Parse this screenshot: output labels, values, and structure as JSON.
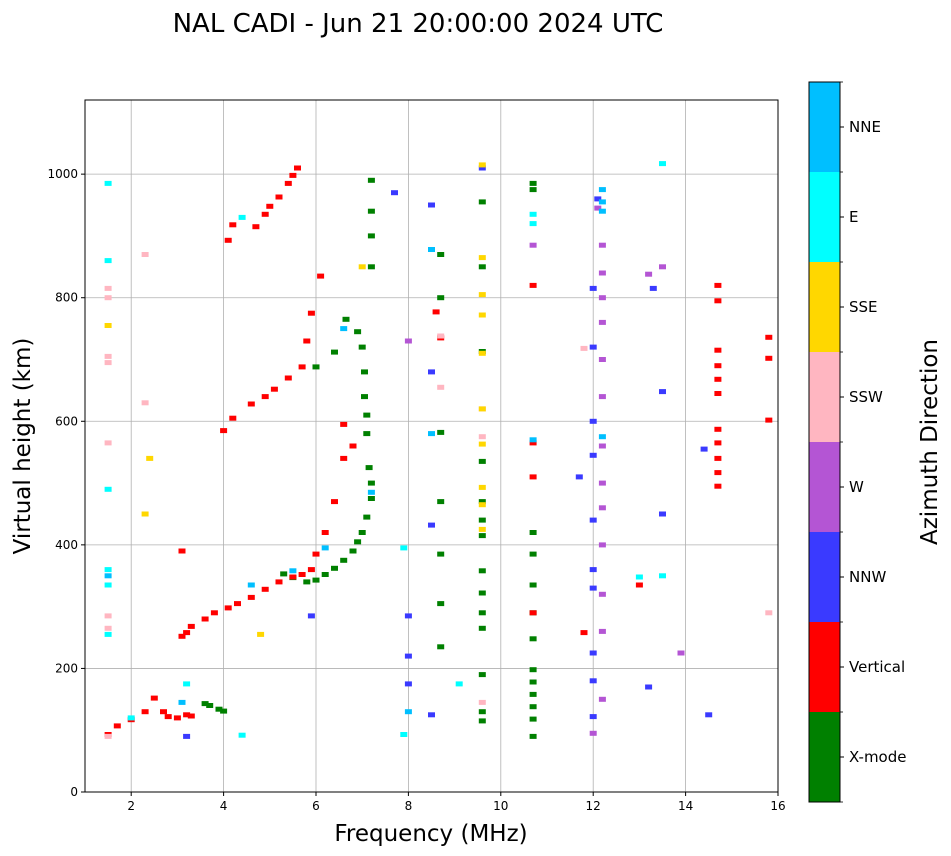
{
  "chart_data": {
    "type": "scatter",
    "title": "NAL CADI - Jun 21 20:00:00 2024 UTC",
    "xlabel": "Frequency (MHz)",
    "ylabel": "Virtual height (km)",
    "xlim": [
      1,
      16
    ],
    "ylim": [
      0,
      1120
    ],
    "xticks": [
      2,
      4,
      6,
      8,
      10,
      12,
      14,
      16
    ],
    "yticks": [
      0,
      200,
      400,
      600,
      800,
      1000
    ],
    "grid": true,
    "colorbar": {
      "label": "Azimuth Direction",
      "categories": [
        {
          "name": "X-mode",
          "color": "#008000"
        },
        {
          "name": "Vertical",
          "color": "#ff0000"
        },
        {
          "name": "NNW",
          "color": "#3a3aff"
        },
        {
          "name": "W",
          "color": "#b455d4"
        },
        {
          "name": "SSW",
          "color": "#ffb6c1"
        },
        {
          "name": "SSE",
          "color": "#ffd700"
        },
        {
          "name": "E",
          "color": "#00ffff"
        },
        {
          "name": "NNE",
          "color": "#00bfff"
        }
      ]
    },
    "series": [
      {
        "name": "X-mode",
        "points": [
          [
            3.6,
            143
          ],
          [
            3.7,
            140
          ],
          [
            3.9,
            134
          ],
          [
            4.0,
            131
          ],
          [
            5.3,
            353
          ],
          [
            5.5,
            347
          ],
          [
            5.8,
            340
          ],
          [
            6.0,
            343
          ],
          [
            6.2,
            352
          ],
          [
            6.4,
            362
          ],
          [
            6.6,
            375
          ],
          [
            6.8,
            390
          ],
          [
            6.9,
            405
          ],
          [
            7.0,
            420
          ],
          [
            7.1,
            445
          ],
          [
            7.2,
            475
          ],
          [
            7.2,
            500
          ],
          [
            7.15,
            525
          ],
          [
            7.1,
            580
          ],
          [
            7.1,
            610
          ],
          [
            7.05,
            640
          ],
          [
            7.05,
            680
          ],
          [
            7.0,
            720
          ],
          [
            6.9,
            745
          ],
          [
            6.65,
            765
          ],
          [
            6.4,
            712
          ],
          [
            6.0,
            688
          ],
          [
            7.2,
            850
          ],
          [
            7.2,
            900
          ],
          [
            7.2,
            940
          ],
          [
            7.2,
            990
          ],
          [
            8.7,
            235
          ],
          [
            8.7,
            305
          ],
          [
            8.7,
            385
          ],
          [
            8.7,
            470
          ],
          [
            8.7,
            582
          ],
          [
            8.7,
            800
          ],
          [
            8.7,
            870
          ],
          [
            9.6,
            115
          ],
          [
            9.6,
            130
          ],
          [
            9.6,
            190
          ],
          [
            9.6,
            265
          ],
          [
            9.6,
            290
          ],
          [
            9.6,
            322
          ],
          [
            9.6,
            358
          ],
          [
            9.6,
            415
          ],
          [
            9.6,
            440
          ],
          [
            9.6,
            470
          ],
          [
            9.6,
            535
          ],
          [
            9.6,
            713
          ],
          [
            9.6,
            850
          ],
          [
            9.6,
            955
          ],
          [
            10.7,
            90
          ],
          [
            10.7,
            118
          ],
          [
            10.7,
            138
          ],
          [
            10.7,
            158
          ],
          [
            10.7,
            178
          ],
          [
            10.7,
            198
          ],
          [
            10.7,
            248
          ],
          [
            10.7,
            290
          ],
          [
            10.7,
            335
          ],
          [
            10.7,
            385
          ],
          [
            10.7,
            420
          ],
          [
            10.7,
            975
          ],
          [
            10.7,
            985
          ]
        ]
      },
      {
        "name": "Vertical",
        "points": [
          [
            1.5,
            93
          ],
          [
            1.7,
            107
          ],
          [
            2.0,
            117
          ],
          [
            2.3,
            130
          ],
          [
            2.5,
            152
          ],
          [
            2.7,
            130
          ],
          [
            2.8,
            122
          ],
          [
            3.0,
            120
          ],
          [
            3.2,
            125
          ],
          [
            3.3,
            123
          ],
          [
            3.1,
            252
          ],
          [
            3.2,
            258
          ],
          [
            3.3,
            268
          ],
          [
            3.6,
            280
          ],
          [
            3.8,
            290
          ],
          [
            4.1,
            298
          ],
          [
            4.3,
            305
          ],
          [
            4.6,
            315
          ],
          [
            4.9,
            328
          ],
          [
            5.2,
            340
          ],
          [
            5.5,
            348
          ],
          [
            5.7,
            352
          ],
          [
            5.9,
            360
          ],
          [
            6.0,
            385
          ],
          [
            6.2,
            420
          ],
          [
            6.4,
            470
          ],
          [
            6.6,
            540
          ],
          [
            6.6,
            595
          ],
          [
            6.8,
            560
          ],
          [
            3.1,
            390
          ],
          [
            4.0,
            585
          ],
          [
            4.2,
            605
          ],
          [
            4.6,
            628
          ],
          [
            4.9,
            640
          ],
          [
            5.1,
            652
          ],
          [
            5.4,
            670
          ],
          [
            5.7,
            688
          ],
          [
            5.8,
            730
          ],
          [
            5.9,
            775
          ],
          [
            6.1,
            835
          ],
          [
            4.1,
            893
          ],
          [
            4.2,
            918
          ],
          [
            4.7,
            915
          ],
          [
            4.9,
            935
          ],
          [
            5.0,
            948
          ],
          [
            5.2,
            963
          ],
          [
            5.4,
            985
          ],
          [
            5.5,
            998
          ],
          [
            5.6,
            1010
          ],
          [
            8.6,
            777
          ],
          [
            8.7,
            735
          ],
          [
            10.7,
            290
          ],
          [
            10.7,
            510
          ],
          [
            10.7,
            565
          ],
          [
            10.7,
            820
          ],
          [
            11.8,
            258
          ],
          [
            13.0,
            335
          ],
          [
            14.7,
            495
          ],
          [
            14.7,
            517
          ],
          [
            14.7,
            540
          ],
          [
            14.7,
            565
          ],
          [
            14.7,
            587
          ],
          [
            14.7,
            645
          ],
          [
            14.7,
            668
          ],
          [
            14.7,
            690
          ],
          [
            14.7,
            715
          ],
          [
            14.7,
            795
          ],
          [
            14.7,
            820
          ],
          [
            15.8,
            602
          ],
          [
            15.8,
            702
          ],
          [
            15.8,
            736
          ]
        ]
      },
      {
        "name": "NNW",
        "points": [
          [
            8.0,
            285
          ],
          [
            8.0,
            220
          ],
          [
            8.0,
            175
          ],
          [
            8.5,
            125
          ],
          [
            8.5,
            432
          ],
          [
            8.5,
            680
          ],
          [
            8.5,
            950
          ],
          [
            9.6,
            1010
          ],
          [
            12.0,
            122
          ],
          [
            12.0,
            180
          ],
          [
            12.0,
            225
          ],
          [
            12.0,
            330
          ],
          [
            12.0,
            360
          ],
          [
            12.0,
            440
          ],
          [
            12.0,
            545
          ],
          [
            12.0,
            600
          ],
          [
            12.0,
            720
          ],
          [
            12.0,
            815
          ],
          [
            12.1,
            960
          ],
          [
            11.7,
            510
          ],
          [
            13.2,
            170
          ],
          [
            13.5,
            450
          ],
          [
            13.5,
            648
          ],
          [
            13.3,
            815
          ],
          [
            14.5,
            125
          ],
          [
            14.4,
            555
          ],
          [
            3.2,
            90
          ],
          [
            7.7,
            970
          ],
          [
            5.9,
            285
          ]
        ]
      },
      {
        "name": "W",
        "points": [
          [
            12.0,
            95
          ],
          [
            12.2,
            150
          ],
          [
            12.2,
            260
          ],
          [
            12.2,
            320
          ],
          [
            12.2,
            400
          ],
          [
            12.2,
            460
          ],
          [
            12.2,
            500
          ],
          [
            12.2,
            560
          ],
          [
            12.2,
            640
          ],
          [
            12.2,
            700
          ],
          [
            12.2,
            760
          ],
          [
            12.2,
            800
          ],
          [
            12.2,
            840
          ],
          [
            12.2,
            885
          ],
          [
            12.1,
            945
          ],
          [
            13.2,
            838
          ],
          [
            13.5,
            850
          ],
          [
            13.9,
            225
          ],
          [
            10.7,
            885
          ],
          [
            8.0,
            730
          ]
        ]
      },
      {
        "name": "SSW",
        "points": [
          [
            1.5,
            90
          ],
          [
            1.5,
            265
          ],
          [
            1.5,
            285
          ],
          [
            1.5,
            565
          ],
          [
            1.5,
            695
          ],
          [
            1.5,
            705
          ],
          [
            1.5,
            800
          ],
          [
            1.5,
            815
          ],
          [
            2.3,
            630
          ],
          [
            2.3,
            870
          ],
          [
            8.7,
            655
          ],
          [
            8.7,
            738
          ],
          [
            9.6,
            145
          ],
          [
            9.6,
            575
          ],
          [
            9.6,
            620
          ],
          [
            11.8,
            718
          ],
          [
            15.8,
            290
          ]
        ]
      },
      {
        "name": "SSE",
        "points": [
          [
            1.5,
            755
          ],
          [
            2.3,
            450
          ],
          [
            2.4,
            540
          ],
          [
            4.8,
            255
          ],
          [
            7.0,
            850
          ],
          [
            9.6,
            425
          ],
          [
            9.6,
            465
          ],
          [
            9.6,
            493
          ],
          [
            9.6,
            563
          ],
          [
            9.6,
            620
          ],
          [
            9.6,
            710
          ],
          [
            9.6,
            772
          ],
          [
            9.6,
            805
          ],
          [
            9.6,
            865
          ],
          [
            9.6,
            1015
          ]
        ]
      },
      {
        "name": "E",
        "points": [
          [
            1.5,
            255
          ],
          [
            1.5,
            335
          ],
          [
            1.5,
            360
          ],
          [
            1.5,
            490
          ],
          [
            1.5,
            860
          ],
          [
            1.5,
            985
          ],
          [
            2.0,
            120
          ],
          [
            3.2,
            175
          ],
          [
            4.4,
            92
          ],
          [
            7.9,
            93
          ],
          [
            7.9,
            395
          ],
          [
            9.1,
            175
          ],
          [
            10.7,
            920
          ],
          [
            10.7,
            935
          ],
          [
            13.0,
            348
          ],
          [
            13.5,
            350
          ],
          [
            13.5,
            1017
          ],
          [
            4.4,
            930
          ]
        ]
      },
      {
        "name": "NNE",
        "points": [
          [
            1.5,
            350
          ],
          [
            3.1,
            145
          ],
          [
            4.6,
            335
          ],
          [
            5.5,
            358
          ],
          [
            6.2,
            395
          ],
          [
            6.6,
            750
          ],
          [
            7.2,
            485
          ],
          [
            8.5,
            580
          ],
          [
            8.5,
            878
          ],
          [
            8.0,
            130
          ],
          [
            10.7,
            570
          ],
          [
            12.2,
            575
          ],
          [
            12.2,
            940
          ],
          [
            12.2,
            955
          ],
          [
            12.2,
            975
          ]
        ]
      }
    ]
  }
}
